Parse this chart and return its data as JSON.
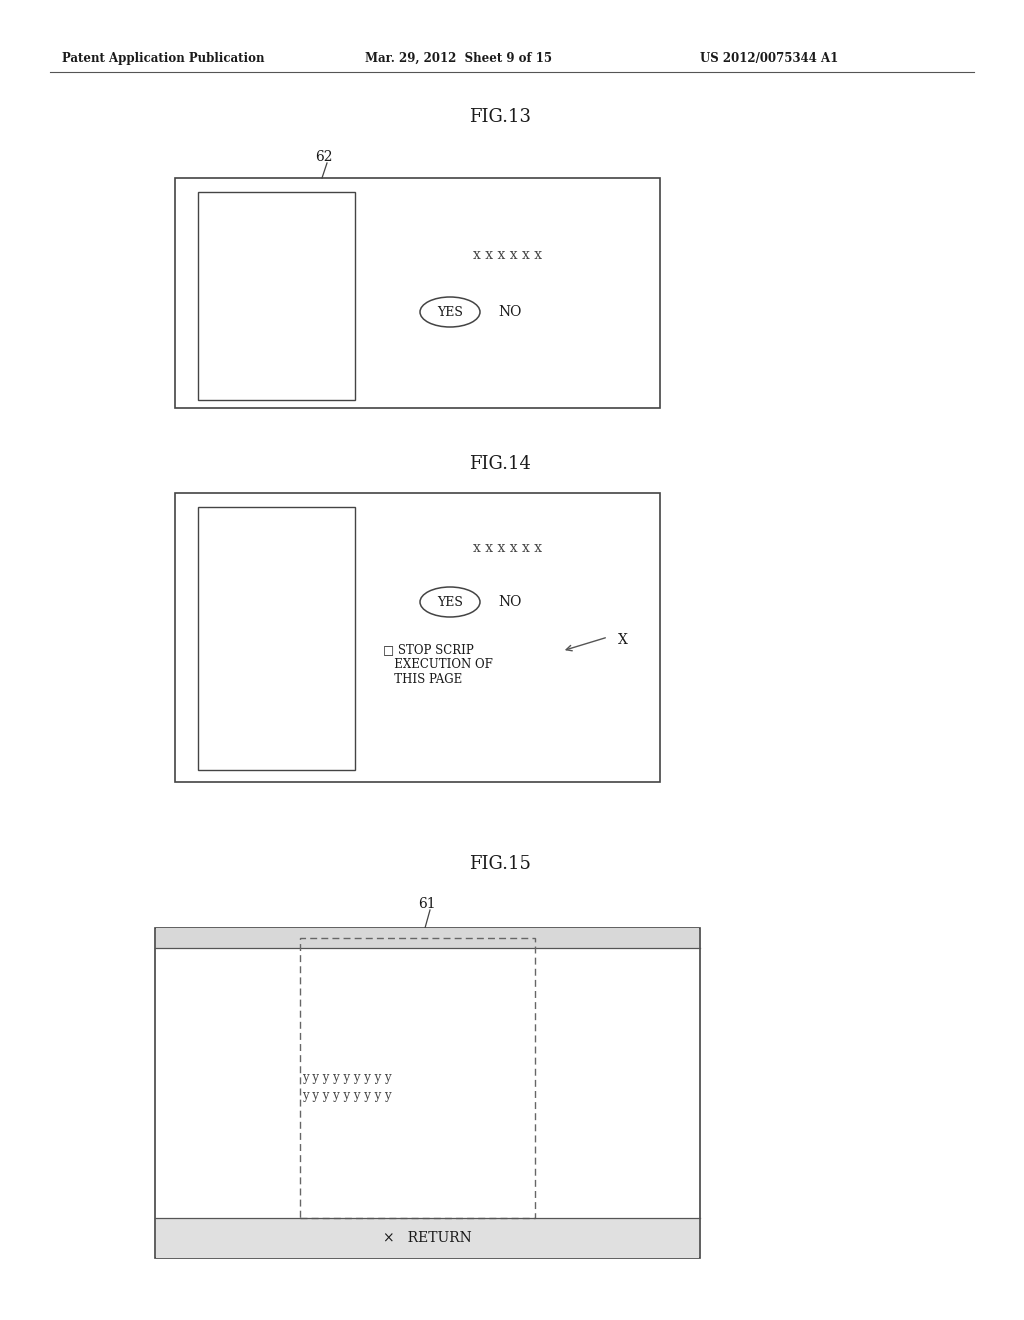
{
  "background_color": "#ffffff",
  "header_left": "Patent Application Publication",
  "header_center": "Mar. 29, 2012  Sheet 9 of 15",
  "header_right": "US 2012/0075344 A1",
  "fig13_title": "FIG.13",
  "fig14_title": "FIG.14",
  "fig15_title": "FIG.15",
  "label_62_text": "62",
  "label_61_text": "61",
  "label_x_text": "X",
  "xxxxxx_text": "x x x x x x",
  "yes_text": "YES",
  "no_text": "NO",
  "stop_line1": "□ STOP SCRIP",
  "stop_line2": "   EXECUTION OF",
  "stop_line3": "   THIS PAGE",
  "y_row1": "y y y y y y y y y",
  "y_row2": "y y y y y y y y y",
  "return_text": "×   RETURN"
}
